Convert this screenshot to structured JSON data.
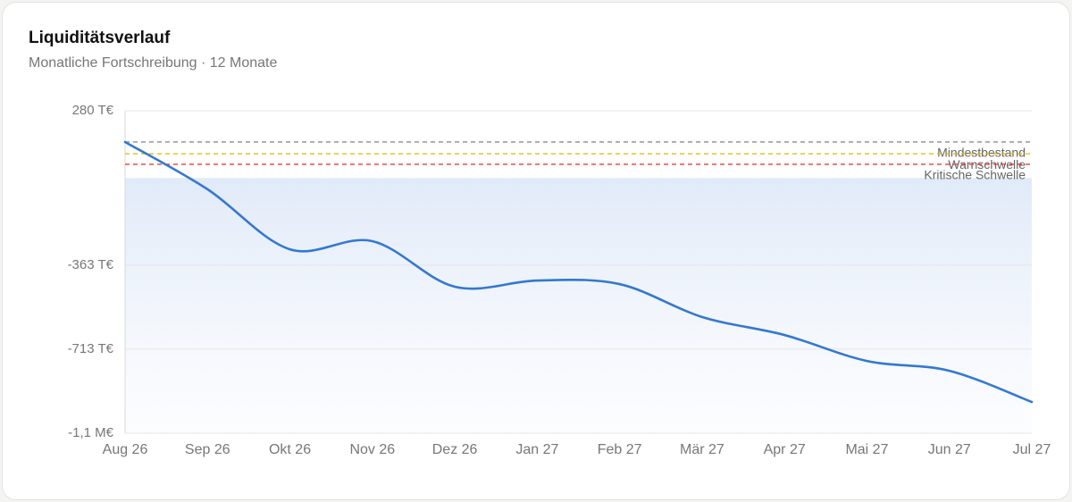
{
  "chart_data": {
    "type": "line",
    "title": "Liquiditätsverlauf",
    "subtitle": "Monatliche Fortschreibung · 12 Monate",
    "categories": [
      "Aug 26",
      "Sep 26",
      "Okt 26",
      "Nov 26",
      "Dez 26",
      "Jan 27",
      "Feb 27",
      "Mär 27",
      "Apr 27",
      "Mai 27",
      "Jun 27",
      "Jul 27"
    ],
    "values": [
      150,
      -47,
      -297,
      -263,
      -453,
      -427,
      -442,
      -579,
      -654,
      -762,
      -803,
      -933
    ],
    "color": "#3478d0",
    "ylim": [
      -1063,
      280
    ],
    "yticks": [
      {
        "value": 280,
        "label": "280 T€"
      },
      {
        "value": -363,
        "label": "-363 T€"
      },
      {
        "value": -713,
        "label": "-713 T€"
      },
      {
        "value": -1063,
        "label": "-1,1 M€"
      }
    ],
    "grid": true,
    "thresholds": [
      {
        "name": "Mindestbestand",
        "value": 150,
        "color": "#8a8a9a"
      },
      {
        "name": "Warnschwelle",
        "value": 101,
        "color": "#e0b400"
      },
      {
        "name": "Kritische Schwelle",
        "value": 57,
        "color": "#e0403a"
      }
    ]
  }
}
